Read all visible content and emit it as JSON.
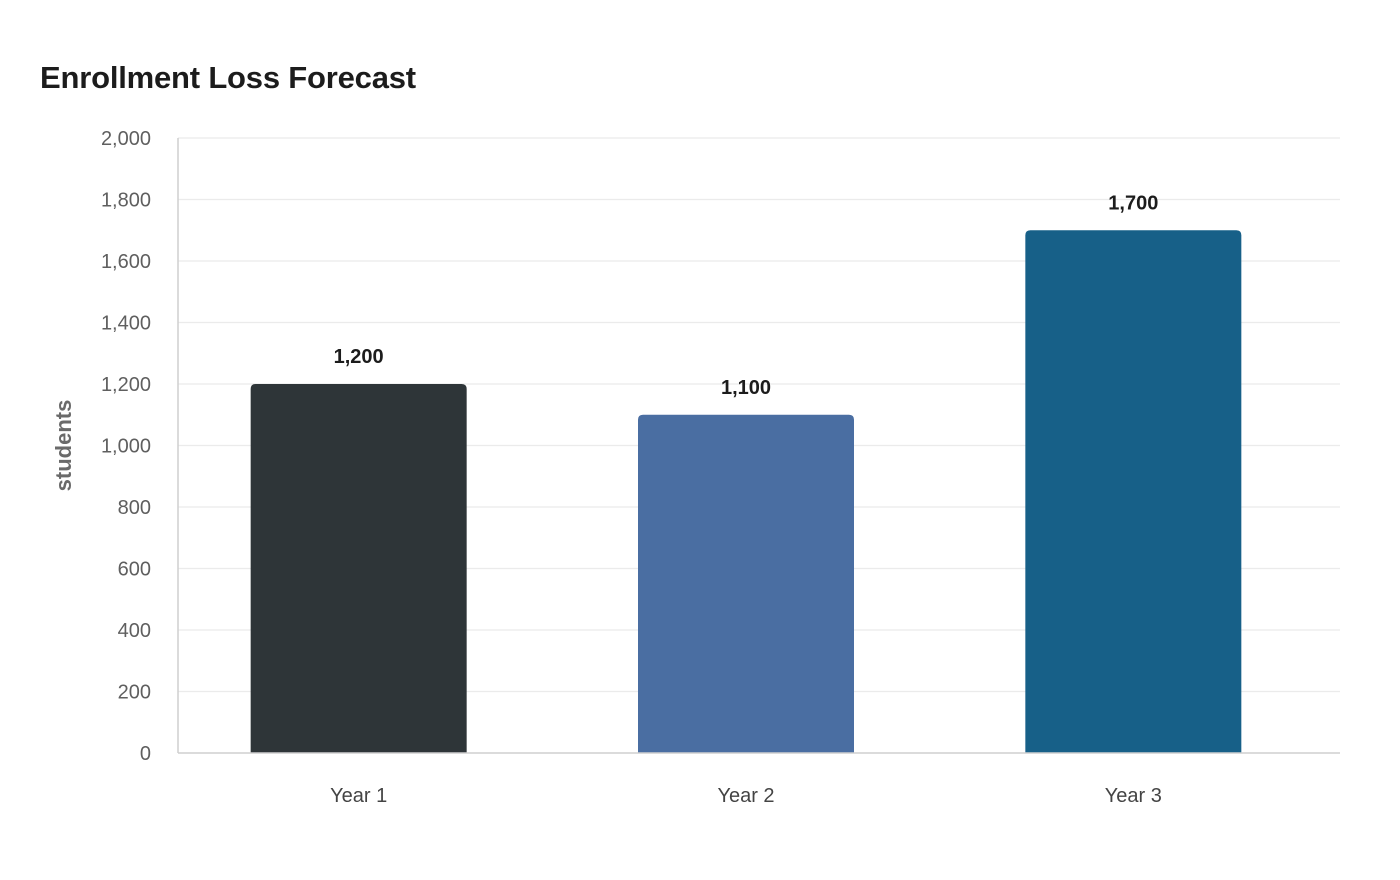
{
  "chart_data": {
    "type": "bar",
    "title": "Enrollment Loss Forecast",
    "xlabel": "",
    "ylabel": "students",
    "categories": [
      "Year 1",
      "Year 2",
      "Year 3"
    ],
    "values": [
      1200,
      1100,
      1700
    ],
    "data_labels": [
      "1,200",
      "1,100",
      "1,700"
    ],
    "colors": [
      "#2e3538",
      "#4a6ea2",
      "#176088"
    ],
    "ylim": [
      0,
      2000
    ],
    "yticks": [
      0,
      200,
      400,
      600,
      800,
      1000,
      1200,
      1400,
      1600,
      1800,
      2000
    ],
    "ytick_labels": [
      "0",
      "200",
      "400",
      "600",
      "800",
      "1,000",
      "1,200",
      "1,400",
      "1,600",
      "1,800",
      "2,000"
    ],
    "grid": true,
    "legend": "none"
  }
}
